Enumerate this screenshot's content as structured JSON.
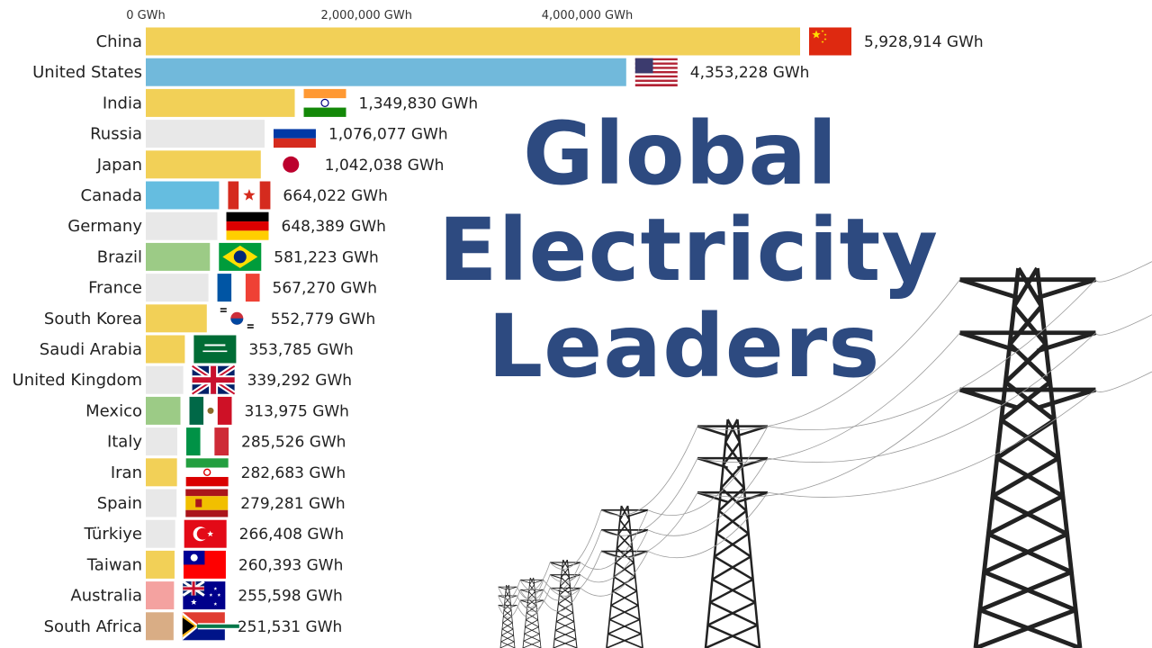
{
  "title_lines": [
    "Global",
    "Electricity",
    "Leaders"
  ],
  "chart_data": {
    "type": "bar",
    "orientation": "horizontal",
    "unit": "GWh",
    "xlim": [
      0,
      5928914
    ],
    "x_ticks": [
      {
        "value": 0,
        "label": "0 GWh"
      },
      {
        "value": 2000000,
        "label": "2,000,000 GWh"
      },
      {
        "value": 4000000,
        "label": "4,000,000 GWh"
      }
    ],
    "categories": [
      "China",
      "United States",
      "India",
      "Russia",
      "Japan",
      "Canada",
      "Germany",
      "Brazil",
      "France",
      "South Korea",
      "Saudi Arabia",
      "United Kingdom",
      "Mexico",
      "Italy",
      "Iran",
      "Spain",
      "Türkiye",
      "Taiwan",
      "Australia",
      "South Africa"
    ],
    "values": [
      5928914,
      4353228,
      1349830,
      1076077,
      1042038,
      664022,
      648389,
      581223,
      567270,
      552779,
      353785,
      339292,
      313975,
      285526,
      282683,
      279281,
      266408,
      260393,
      255598,
      251531
    ],
    "value_labels": [
      "5,928,914 GWh",
      "4,353,228 GWh",
      "1,349,830 GWh",
      "1,076,077 GWh",
      "1,042,038 GWh",
      "664,022 GWh",
      "648,389 GWh",
      "581,223 GWh",
      "567,270 GWh",
      "552,779 GWh",
      "353,785 GWh",
      "339,292 GWh",
      "313,975 GWh",
      "285,526 GWh",
      "282,683 GWh",
      "279,281 GWh",
      "266,408 GWh",
      "260,393 GWh",
      "255,598 GWh",
      "251,531 GWh"
    ],
    "bar_colors": [
      "#f2d057",
      "#71b9db",
      "#f2d057",
      "#e8e8e8",
      "#f2d057",
      "#65bde0",
      "#e8e8e8",
      "#9ccb86",
      "#e8e8e8",
      "#f2d057",
      "#f2d057",
      "#e8e8e8",
      "#9ccb86",
      "#e8e8e8",
      "#f2d057",
      "#e8e8e8",
      "#e8e8e8",
      "#f2d057",
      "#f4a2a0",
      "#d9ad85"
    ],
    "flags": [
      "china",
      "usa",
      "india",
      "russia",
      "japan",
      "canada",
      "germany",
      "brazil",
      "france",
      "south-korea",
      "saudi-arabia",
      "uk",
      "mexico",
      "italy",
      "iran",
      "spain",
      "turkiye",
      "taiwan",
      "australia",
      "south-africa"
    ]
  }
}
